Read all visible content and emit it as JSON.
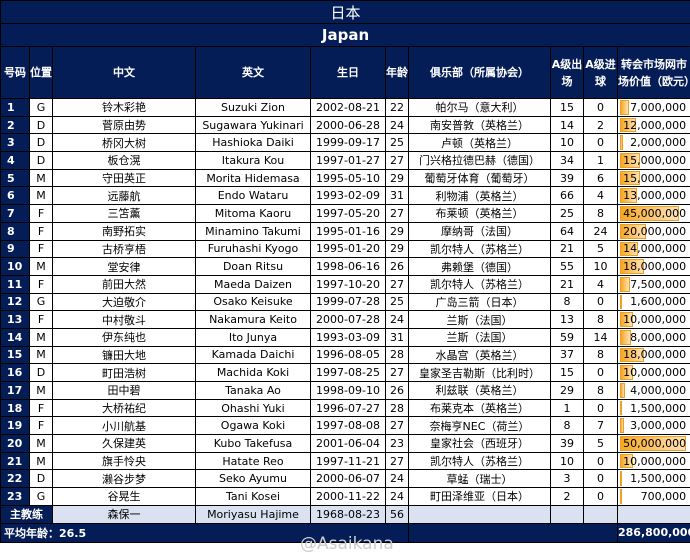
{
  "title": "日本",
  "subtitle": "Japan",
  "headers": [
    "号码",
    "位置",
    "中文",
    "英文",
    "生日",
    "年龄",
    "俱乐部（所属协会）",
    "A级出场",
    "A级进球",
    "转会市场网市场价值（欧元）"
  ],
  "players": [
    [
      "1",
      "G",
      "铃木彩艳",
      "Suzuki Zion",
      "2002-08-21",
      "22",
      "帕尔马（意大利）",
      "15",
      "0",
      "7,000,000",
      7000000
    ],
    [
      "2",
      "D",
      "菅原由势",
      "Sugawara Yukinari",
      "2000-06-28",
      "24",
      "南安普敦（英格兰）",
      "14",
      "2",
      "12,000,000",
      12000000
    ],
    [
      "3",
      "D",
      "桥冈大树",
      "Hashioka Daiki",
      "1999-09-17",
      "25",
      "卢顿（英格兰）",
      "10",
      "0",
      "2,000,000",
      2000000
    ],
    [
      "4",
      "D",
      "板仓滉",
      "Itakura Kou",
      "1997-01-27",
      "27",
      "门兴格拉德巴赫（德国）",
      "34",
      "1",
      "15,000,000",
      15000000
    ],
    [
      "5",
      "M",
      "守田英正",
      "Morita Hidemasa",
      "1995-05-10",
      "29",
      "葡萄牙体育（葡萄牙）",
      "39",
      "6",
      "15,000,000",
      15000000
    ],
    [
      "6",
      "M",
      "远藤航",
      "Endo Wataru",
      "1993-02-09",
      "31",
      "利物浦（英格兰）",
      "66",
      "4",
      "13,000,000",
      13000000
    ],
    [
      "7",
      "F",
      "三笘薰",
      "Mitoma Kaoru",
      "1997-05-20",
      "27",
      "布莱顿（英格兰）",
      "25",
      "8",
      "45,000,000",
      45000000
    ],
    [
      "8",
      "F",
      "南野拓实",
      "Minamino Takumi",
      "1995-01-16",
      "29",
      "摩纳哥（法国）",
      "64",
      "24",
      "20,000,000",
      20000000
    ],
    [
      "9",
      "F",
      "古桥亨梧",
      "Furuhashi Kyogo",
      "1995-01-20",
      "29",
      "凯尔特人（苏格兰）",
      "21",
      "5",
      "14,000,000",
      14000000
    ],
    [
      "10",
      "M",
      "堂安律",
      "Doan Ritsu",
      "1998-06-16",
      "26",
      "弗赖堡（德国）",
      "55",
      "10",
      "18,000,000",
      18000000
    ],
    [
      "11",
      "F",
      "前田大然",
      "Maeda Daizen",
      "1997-10-20",
      "27",
      "凯尔特人（苏格兰）",
      "21",
      "4",
      "7,500,000",
      7500000
    ],
    [
      "12",
      "G",
      "大迫敬介",
      "Osako Keisuke",
      "1999-07-28",
      "25",
      "广岛三箭（日本）",
      "8",
      "0",
      "1,600,000",
      1600000
    ],
    [
      "13",
      "F",
      "中村敬斗",
      "Nakamura Keito",
      "2000-07-28",
      "24",
      "兰斯（法国）",
      "13",
      "8",
      "10,000,000",
      10000000
    ],
    [
      "14",
      "M",
      "伊东纯也",
      "Ito Junya",
      "1993-03-09",
      "31",
      "兰斯（法国）",
      "59",
      "14",
      "8,000,000",
      8000000
    ],
    [
      "15",
      "M",
      "镰田大地",
      "Kamada Daichi",
      "1996-08-05",
      "28",
      "水晶宫（英格兰）",
      "37",
      "8",
      "18,000,000",
      18000000
    ],
    [
      "16",
      "D",
      "町田浩树",
      "Machida Koki",
      "1997-08-25",
      "27",
      "皇家圣吉勒斯（比利时）",
      "15",
      "0",
      "10,000,000",
      10000000
    ],
    [
      "17",
      "M",
      "田中碧",
      "Tanaka Ao",
      "1998-09-10",
      "26",
      "利兹联（英格兰）",
      "29",
      "8",
      "4,000,000",
      4000000
    ],
    [
      "18",
      "F",
      "大桥祐纪",
      "Ohashi Yuki",
      "1996-07-27",
      "28",
      "布莱克本（英格兰）",
      "1",
      "0",
      "1,500,000",
      1500000
    ],
    [
      "19",
      "F",
      "小川航基",
      "Ogawa Koki",
      "1997-08-08",
      "27",
      "奈梅亨NEC（荷兰）",
      "8",
      "7",
      "3,000,000",
      3000000
    ],
    [
      "20",
      "M",
      "久保建英",
      "Kubo Takefusa",
      "2001-06-04",
      "23",
      "皇家社会（西班牙）",
      "39",
      "5",
      "50,000,000",
      50000000
    ],
    [
      "21",
      "M",
      "旗手怜央",
      "Hatate Reo",
      "1997-11-21",
      "27",
      "凯尔特人（苏格兰）",
      "10",
      "0",
      "10,000,000",
      10000000
    ],
    [
      "22",
      "D",
      "濑谷步梦",
      "Seko Ayumu",
      "2000-06-07",
      "24",
      "草蜢（瑞士）",
      "3",
      "0",
      "1,500,000",
      1500000
    ],
    [
      "23",
      "G",
      "谷晃生",
      "Tani Kosei",
      "2000-11-22",
      "24",
      "町田泽维亚（日本）",
      "2",
      "0",
      "700,000",
      700000
    ]
  ],
  "coach": {
    "label": "主教练",
    "cn": "森保一",
    "en": "Moriyasu Hajime",
    "birth": "1968-08-23",
    "age": "56"
  },
  "footer": {
    "avg_age": "平均年龄：26.5",
    "total": "286,800,000"
  },
  "watermark": "@Asaikana",
  "colors": {
    "header": "#051d56",
    "bar": "#f6a623",
    "coach_row": "#dae1f1"
  }
}
